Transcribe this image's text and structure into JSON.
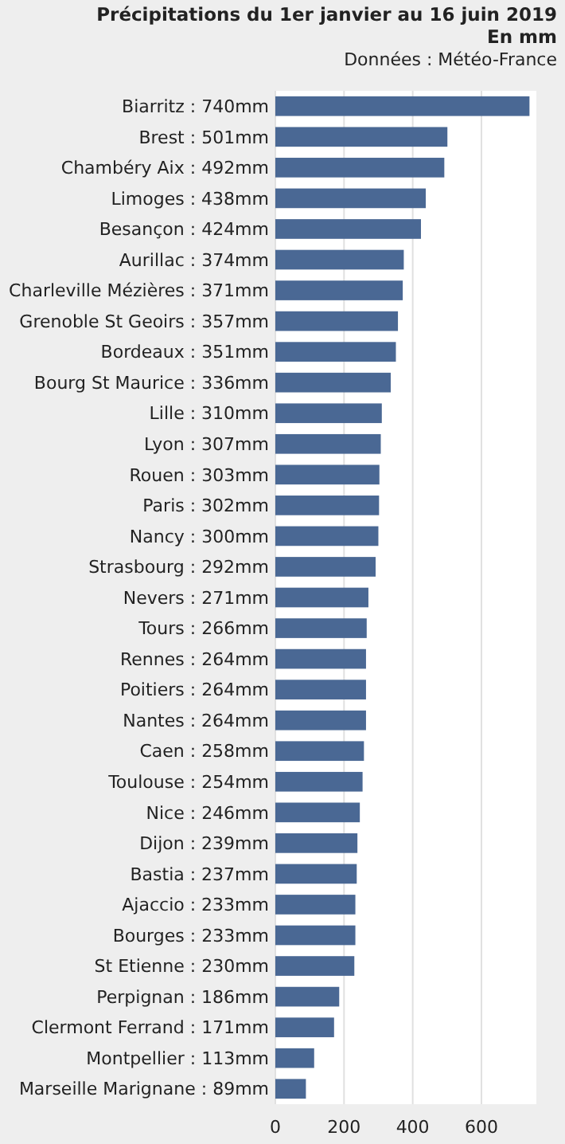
{
  "chart_data": {
    "type": "bar",
    "orientation": "horizontal",
    "title": "Précipitations du 1er janvier au 16 juin 2019",
    "subtitle": "En mm",
    "annotations": [
      "Données : Météo-France"
    ],
    "categories": [
      "Biarritz : 740mm",
      "Brest : 501mm",
      "Chambéry Aix : 492mm",
      "Limoges : 438mm",
      "Besançon : 424mm",
      "Aurillac : 374mm",
      "Charleville Mézières : 371mm",
      "Grenoble St Geoirs : 357mm",
      "Bordeaux : 351mm",
      "Bourg St Maurice : 336mm",
      "Lille : 310mm",
      "Lyon : 307mm",
      "Rouen : 303mm",
      "Paris : 302mm",
      "Nancy : 300mm",
      "Strasbourg : 292mm",
      "Nevers : 271mm",
      "Tours : 266mm",
      "Rennes : 264mm",
      "Poitiers : 264mm",
      "Nantes : 264mm",
      "Caen : 258mm",
      "Toulouse : 254mm",
      "Nice : 246mm",
      "Dijon : 239mm",
      "Bastia : 237mm",
      "Ajaccio : 233mm",
      "Bourges : 233mm",
      "St Etienne : 230mm",
      "Perpignan : 186mm",
      "Clermont Ferrand : 171mm",
      "Montpellier : 113mm",
      "Marseille Marignane : 89mm"
    ],
    "values": [
      740,
      501,
      492,
      438,
      424,
      374,
      371,
      357,
      351,
      336,
      310,
      307,
      303,
      302,
      300,
      292,
      271,
      266,
      264,
      264,
      264,
      258,
      254,
      246,
      239,
      237,
      233,
      233,
      230,
      186,
      171,
      113,
      89
    ],
    "color": "#4a6894",
    "xlim": [
      0,
      760
    ],
    "xticks": [
      0,
      200,
      400,
      600
    ],
    "grid": "x"
  }
}
